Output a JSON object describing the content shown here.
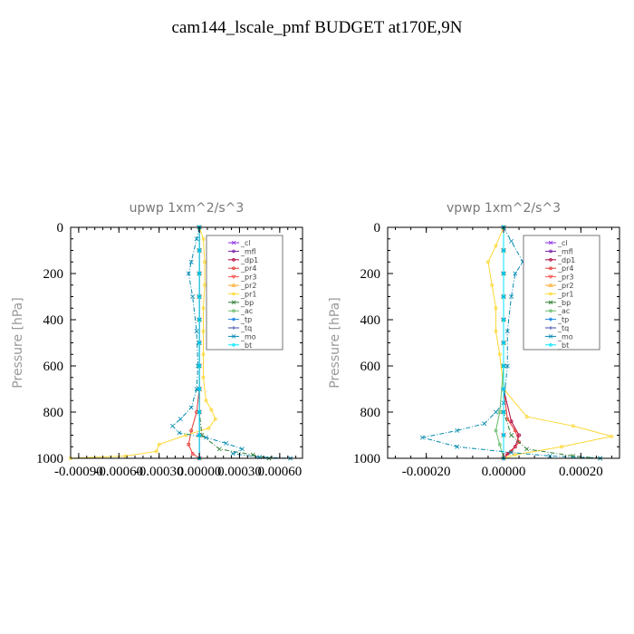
{
  "title": "cam144_lscale_pmf  BUDGET at170E,9N",
  "chart_data": [
    {
      "type": "line",
      "title": "upwp   1xm^2/s^3",
      "ylabel": "Pressure [hPa]",
      "xlim": [
        -0.00096,
        0.00077
      ],
      "ylim": [
        1000,
        0
      ],
      "xticks": [
        -0.0009,
        -0.0006,
        -0.0003,
        0.0,
        0.0003,
        0.0006
      ],
      "xtick_labels": [
        "-0.00090",
        "-0.00060",
        "-0.00030",
        "0.00000",
        "0.00030",
        "0.00060"
      ],
      "yticks": [
        0,
        200,
        400,
        600,
        800,
        1000
      ],
      "ytick_labels": [
        "0",
        "200",
        "400",
        "600",
        "800",
        "1000"
      ],
      "legend": "top-right",
      "series": [
        {
          "name": "_cl",
          "color": "#8a2be2",
          "marker": "x",
          "x": [
            0,
            0,
            0,
            0,
            0,
            0,
            0,
            0,
            0,
            0,
            0
          ],
          "y": [
            0,
            100,
            200,
            300,
            400,
            500,
            600,
            700,
            800,
            900,
            1000
          ]
        },
        {
          "name": "_mfl",
          "color": "#7b1fa2",
          "marker": "o",
          "x": [
            0,
            0,
            0,
            0,
            0,
            0,
            0,
            0,
            0,
            0,
            0
          ],
          "y": [
            0,
            100,
            200,
            300,
            400,
            500,
            600,
            700,
            800,
            900,
            1000
          ]
        },
        {
          "name": "_dp1",
          "color": "#b0003a",
          "marker": "o",
          "x": [
            0,
            0,
            0,
            0,
            0,
            0,
            0,
            0,
            0,
            0,
            0
          ],
          "y": [
            0,
            100,
            200,
            300,
            400,
            500,
            600,
            700,
            800,
            900,
            1000
          ]
        },
        {
          "name": "_pr4",
          "color": "#e53935",
          "marker": "o",
          "x": [
            0,
            0,
            0,
            0,
            0,
            0,
            0,
            0,
            -2e-05,
            -6e-05,
            -8e-05,
            -5e-05,
            0
          ],
          "y": [
            0,
            100,
            200,
            300,
            400,
            500,
            600,
            700,
            800,
            880,
            940,
            980,
            1000
          ]
        },
        {
          "name": "_pr3",
          "color": "#ff5252",
          "marker": "v",
          "x": [
            0,
            0,
            0,
            0,
            0,
            0,
            0,
            0,
            0,
            0,
            0
          ],
          "y": [
            0,
            100,
            200,
            300,
            400,
            500,
            600,
            700,
            800,
            900,
            1000
          ]
        },
        {
          "name": "_pr2",
          "color": "#ffa726",
          "marker": "^",
          "x": [
            0,
            0,
            0,
            0,
            0,
            0,
            0,
            0,
            0,
            0,
            0
          ],
          "y": [
            0,
            100,
            200,
            300,
            400,
            500,
            600,
            700,
            800,
            900,
            1000
          ]
        },
        {
          "name": "_pr1",
          "color": "#fdd835",
          "marker": "o",
          "x": [
            0,
            3e-05,
            4e-05,
            4e-05,
            3e-05,
            3e-05,
            3e-05,
            3e-05,
            5e-05,
            9e-05,
            0.00012,
            7e-05,
            -0.0001,
            -0.0003,
            -0.00032,
            -0.00055,
            -0.00096
          ],
          "y": [
            0,
            50,
            150,
            250,
            350,
            450,
            550,
            650,
            750,
            790,
            830,
            870,
            900,
            940,
            970,
            990,
            1000
          ]
        },
        {
          "name": "_bp",
          "color": "#2e7d32",
          "marker": "x",
          "x": [
            0,
            0,
            0,
            0,
            0,
            0,
            0,
            0,
            0,
            2e-05,
            0.00015,
            0.0004,
            0.00052
          ],
          "y": [
            0,
            100,
            200,
            300,
            400,
            500,
            600,
            700,
            800,
            900,
            960,
            985,
            1000
          ]
        },
        {
          "name": "_ac",
          "color": "#66bb6a",
          "marker": "o",
          "x": [
            0,
            0,
            0,
            0,
            0,
            0,
            0,
            0,
            0,
            0,
            0
          ],
          "y": [
            0,
            100,
            200,
            300,
            400,
            500,
            600,
            700,
            800,
            900,
            1000
          ]
        },
        {
          "name": "_tp",
          "color": "#1e88e5",
          "marker": "*",
          "x": [
            0,
            0,
            0,
            0,
            0,
            0,
            0,
            0,
            0,
            0,
            0
          ],
          "y": [
            0,
            100,
            200,
            300,
            400,
            500,
            600,
            700,
            800,
            900,
            1000
          ]
        },
        {
          "name": "_tq",
          "color": "#3949ab",
          "marker": "+",
          "x": [
            0,
            0,
            0,
            0,
            0,
            0,
            0,
            0,
            0,
            0,
            0
          ],
          "y": [
            0,
            100,
            200,
            300,
            400,
            500,
            600,
            700,
            800,
            900,
            1000
          ]
        },
        {
          "name": "_mo",
          "color": "#0288b0",
          "marker": "x",
          "x": [
            0,
            -2e-05,
            -6e-05,
            -8e-05,
            -5e-05,
            -2e-05,
            -1e-05,
            -2e-05,
            -6e-05,
            -0.00014,
            -0.0002,
            -0.00015,
            5e-05,
            0.0002,
            0.00032,
            0.00025,
            0.00045,
            0.00068
          ],
          "y": [
            0,
            50,
            150,
            200,
            300,
            450,
            600,
            700,
            780,
            830,
            860,
            890,
            910,
            935,
            960,
            980,
            995,
            1000
          ]
        },
        {
          "name": "_bt",
          "color": "#00e5ff",
          "marker": "o",
          "x": [
            0,
            0,
            0,
            0,
            0,
            0,
            0,
            0,
            0,
            0,
            0
          ],
          "y": [
            0,
            100,
            200,
            300,
            400,
            500,
            600,
            700,
            800,
            900,
            1000
          ]
        }
      ]
    },
    {
      "type": "line",
      "title": "vpwp   1xm^2/s^3",
      "ylabel": "Pressure [hPa]",
      "xlim": [
        -0.0003,
        0.0003
      ],
      "ylim": [
        1000,
        0
      ],
      "xticks": [
        -0.0002,
        0.0,
        0.0002
      ],
      "xtick_labels": [
        "-0.00020",
        "0.00000",
        "0.00020"
      ],
      "yticks": [
        0,
        200,
        400,
        600,
        800,
        1000
      ],
      "ytick_labels": [
        "0",
        "200",
        "400",
        "600",
        "800",
        "1000"
      ],
      "legend": "top-right",
      "series": [
        {
          "name": "_cl",
          "color": "#8a2be2",
          "marker": "x",
          "x": [
            0,
            0,
            0,
            0,
            0,
            0,
            0,
            0,
            0,
            0,
            0
          ],
          "y": [
            0,
            100,
            200,
            300,
            400,
            500,
            600,
            700,
            800,
            900,
            1000
          ]
        },
        {
          "name": "_mfl",
          "color": "#7b1fa2",
          "marker": "o",
          "x": [
            0,
            0,
            0,
            0,
            0,
            0,
            0,
            0,
            0,
            0,
            0
          ],
          "y": [
            0,
            100,
            200,
            300,
            400,
            500,
            600,
            700,
            800,
            900,
            1000
          ]
        },
        {
          "name": "_dp1",
          "color": "#b0003a",
          "marker": "o",
          "x": [
            0,
            0,
            0,
            0,
            0,
            0,
            0,
            0,
            2e-05,
            4e-05,
            3e-05,
            1e-05,
            0
          ],
          "y": [
            0,
            100,
            200,
            300,
            400,
            500,
            600,
            700,
            840,
            900,
            950,
            980,
            1000
          ]
        },
        {
          "name": "_pr4",
          "color": "#e53935",
          "marker": "o",
          "x": [
            0,
            0,
            0,
            0,
            0,
            0,
            0,
            0,
            1e-05,
            3e-05,
            4e-05,
            2e-05,
            0
          ],
          "y": [
            0,
            100,
            200,
            300,
            400,
            500,
            600,
            700,
            830,
            880,
            930,
            970,
            1000
          ]
        },
        {
          "name": "_pr3",
          "color": "#ff5252",
          "marker": "v",
          "x": [
            0,
            0,
            0,
            0,
            0,
            0,
            0,
            0,
            0,
            0,
            0
          ],
          "y": [
            0,
            100,
            200,
            300,
            400,
            500,
            600,
            700,
            800,
            900,
            1000
          ]
        },
        {
          "name": "_pr2",
          "color": "#ffa726",
          "marker": "^",
          "x": [
            0,
            0,
            0,
            0,
            0,
            0,
            0,
            0,
            0,
            0,
            0
          ],
          "y": [
            0,
            100,
            200,
            300,
            400,
            500,
            600,
            700,
            800,
            900,
            1000
          ]
        },
        {
          "name": "_pr1",
          "color": "#fdd835",
          "marker": "o",
          "x": [
            0,
            -2e-05,
            -4e-05,
            -3e-05,
            -2e-05,
            -2e-05,
            -1e-05,
            0,
            6e-05,
            0.00018,
            0.00028,
            0.00015,
            3e-05,
            0
          ],
          "y": [
            0,
            80,
            150,
            250,
            350,
            450,
            550,
            700,
            820,
            860,
            905,
            950,
            985,
            1000
          ]
        },
        {
          "name": "_bp",
          "color": "#2e7d32",
          "marker": "x",
          "x": [
            0,
            0,
            0,
            0,
            0,
            0,
            0,
            0,
            0,
            2e-05,
            6e-05,
            0.00018,
            0.00025
          ],
          "y": [
            0,
            100,
            200,
            300,
            400,
            500,
            600,
            700,
            800,
            900,
            960,
            990,
            1000
          ]
        },
        {
          "name": "_ac",
          "color": "#66bb6a",
          "marker": "o",
          "x": [
            0,
            0,
            0,
            0,
            0,
            0,
            0,
            -1e-05,
            -2e-05,
            -1e-05,
            0
          ],
          "y": [
            0,
            100,
            200,
            300,
            400,
            500,
            600,
            800,
            880,
            940,
            1000
          ]
        },
        {
          "name": "_tp",
          "color": "#1e88e5",
          "marker": "*",
          "x": [
            0,
            0,
            0,
            0,
            0,
            0,
            0,
            0,
            0,
            0,
            0
          ],
          "y": [
            0,
            100,
            200,
            300,
            400,
            500,
            600,
            700,
            800,
            900,
            1000
          ]
        },
        {
          "name": "_tq",
          "color": "#3949ab",
          "marker": "+",
          "x": [
            0,
            0,
            0,
            0,
            0,
            0,
            0,
            0,
            0,
            0,
            0
          ],
          "y": [
            0,
            100,
            200,
            300,
            400,
            500,
            600,
            700,
            800,
            900,
            1000
          ]
        },
        {
          "name": "_mo",
          "color": "#0288b0",
          "marker": "x",
          "x": [
            0,
            2e-05,
            5e-05,
            3e-05,
            2e-05,
            1e-05,
            1e-05,
            0,
            -2e-05,
            -5e-05,
            -0.00012,
            -0.00021,
            -0.00012,
            2e-05,
            0.00012,
            0.00025
          ],
          "y": [
            0,
            60,
            150,
            200,
            300,
            450,
            600,
            760,
            800,
            850,
            880,
            910,
            950,
            975,
            990,
            1000
          ]
        },
        {
          "name": "_bt",
          "color": "#00e5ff",
          "marker": "o",
          "x": [
            0,
            0,
            0,
            0,
            0,
            0,
            0,
            0,
            0,
            0,
            0
          ],
          "y": [
            0,
            100,
            200,
            300,
            400,
            500,
            600,
            700,
            800,
            900,
            1000
          ]
        }
      ]
    }
  ]
}
